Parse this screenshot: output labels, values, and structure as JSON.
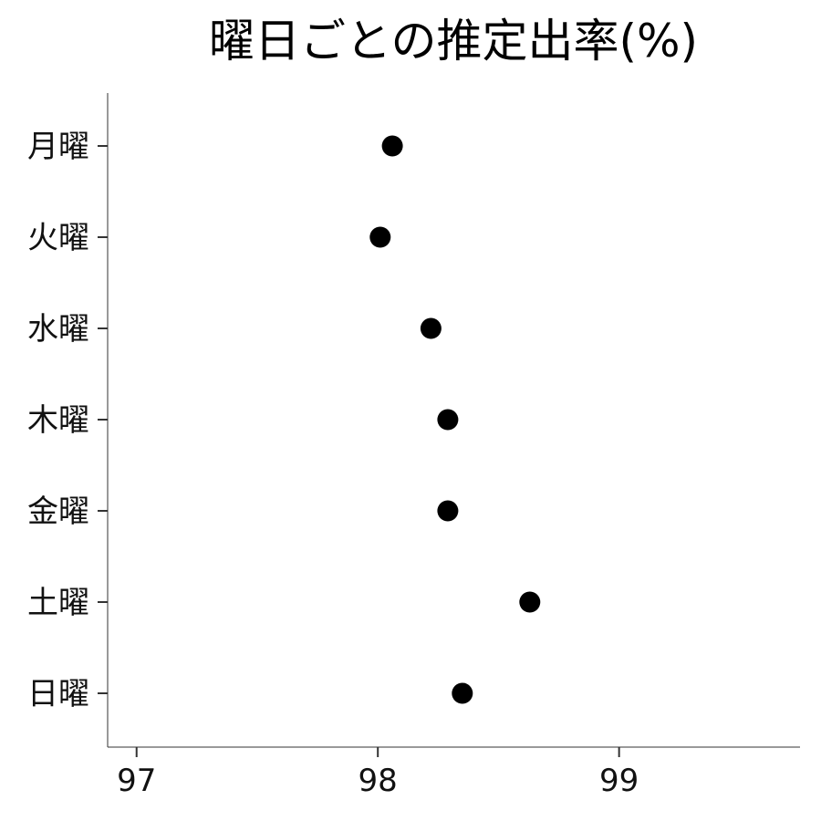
{
  "chart_data": {
    "type": "scatter",
    "title": "曜日ごとの推定出率(%)",
    "xlabel": "",
    "ylabel": "",
    "xlim": [
      96.88,
      99.75
    ],
    "xticks": [
      "97",
      "98",
      "99"
    ],
    "xtick_values": [
      97,
      98,
      99
    ],
    "categories": [
      "月曜",
      "火曜",
      "水曜",
      "木曜",
      "金曜",
      "土曜",
      "日曜"
    ],
    "values": [
      98.06,
      98.01,
      98.22,
      98.29,
      98.29,
      98.63,
      98.35
    ],
    "marker_color": "#000000",
    "grid": false
  }
}
